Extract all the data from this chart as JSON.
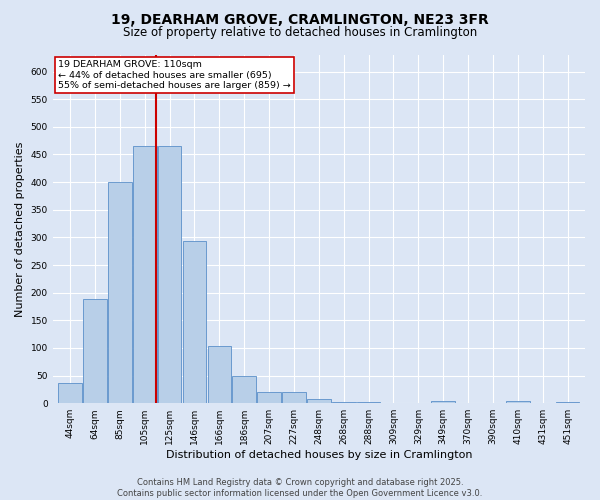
{
  "title1": "19, DEARHAM GROVE, CRAMLINGTON, NE23 3FR",
  "title2": "Size of property relative to detached houses in Cramlington",
  "xlabel": "Distribution of detached houses by size in Cramlington",
  "ylabel": "Number of detached properties",
  "bar_labels": [
    "44sqm",
    "64sqm",
    "85sqm",
    "105sqm",
    "125sqm",
    "146sqm",
    "166sqm",
    "186sqm",
    "207sqm",
    "227sqm",
    "248sqm",
    "268sqm",
    "288sqm",
    "309sqm",
    "329sqm",
    "349sqm",
    "370sqm",
    "390sqm",
    "410sqm",
    "431sqm",
    "451sqm"
  ],
  "bar_values": [
    37,
    188,
    400,
    465,
    465,
    293,
    104,
    50,
    21,
    21,
    8,
    2,
    2,
    0,
    0,
    4,
    0,
    0,
    4,
    0,
    3
  ],
  "bar_color": "#b8cfe8",
  "bar_edge_color": "#5b8fc9",
  "bg_color": "#dce6f5",
  "grid_color": "#ffffff",
  "vline_x_index": 3.47,
  "annotation_line1": "19 DEARHAM GROVE: 110sqm",
  "annotation_line2": "← 44% of detached houses are smaller (695)",
  "annotation_line3": "55% of semi-detached houses are larger (859) →",
  "annotation_box_color": "#ffffff",
  "annotation_box_edge": "#cc0000",
  "vline_color": "#cc0000",
  "ylim": [
    0,
    630
  ],
  "yticks": [
    0,
    50,
    100,
    150,
    200,
    250,
    300,
    350,
    400,
    450,
    500,
    550,
    600
  ],
  "footer_line1": "Contains HM Land Registry data © Crown copyright and database right 2025.",
  "footer_line2": "Contains public sector information licensed under the Open Government Licence v3.0.",
  "title1_fontsize": 10,
  "title2_fontsize": 8.5,
  "tick_fontsize": 6.5,
  "ylabel_fontsize": 8,
  "xlabel_fontsize": 8,
  "annotation_fontsize": 6.8,
  "footer_fontsize": 6
}
